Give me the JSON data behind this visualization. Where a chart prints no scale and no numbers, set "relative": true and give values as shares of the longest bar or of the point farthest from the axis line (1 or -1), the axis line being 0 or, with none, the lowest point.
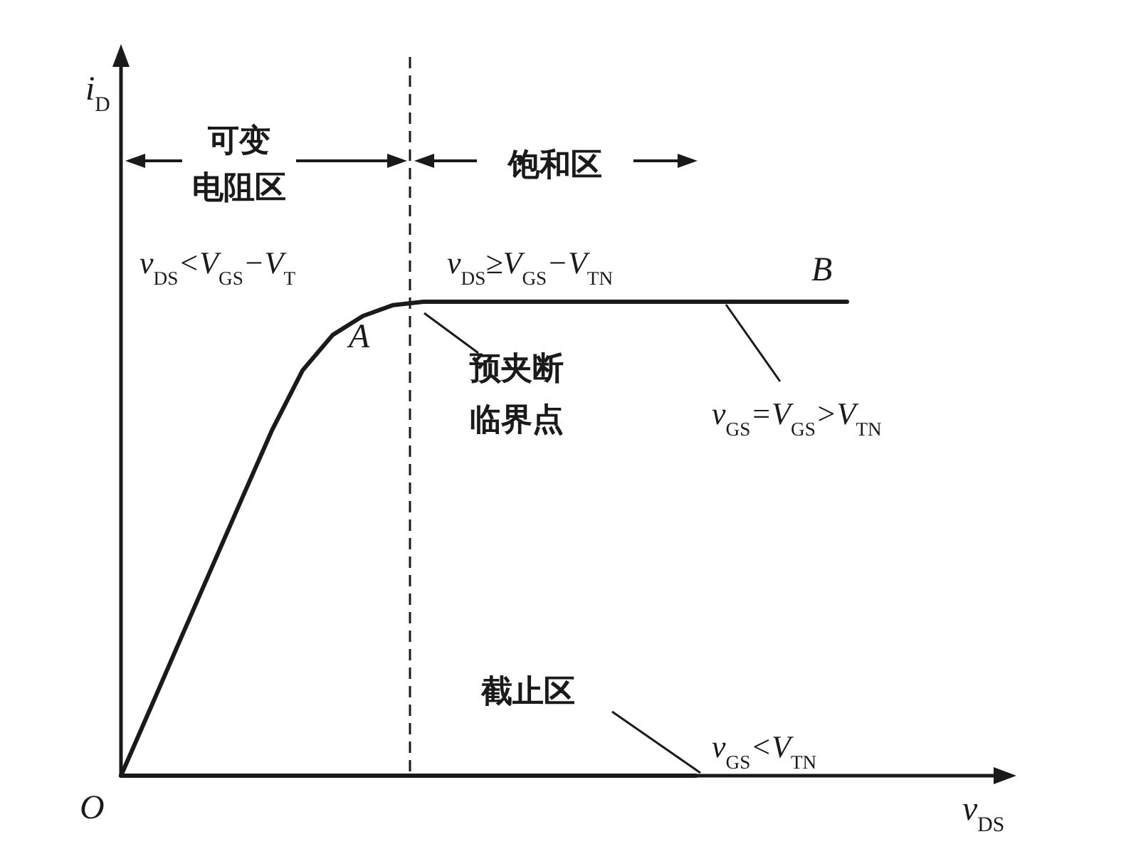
{
  "chart_data": {
    "type": "line",
    "relative": true,
    "xlabel": "v$_{DS}$",
    "categories": [
      null,
      null,
      null,
      null,
      null,
      null,
      null,
      null,
      null,
      null,
      null,
      null,
      null,
      null,
      null,
      null,
      null,
      null,
      null,
      null,
      null,
      null,
      null,
      null,
      null
    ],
    "series": [
      {
        "type": "line",
        "color": "#1a1a1a",
        "values": [
          0,
          0.146,
          0.293,
          0.439,
          0.585,
          0.73,
          0.855,
          0.93,
          0.97,
          0.993,
          1,
          1,
          1,
          1,
          1,
          1,
          1,
          1,
          1,
          1,
          1,
          1,
          1,
          1,
          1
        ]
      },
      {
        "type": "line",
        "color": "#1a1a1a",
        "values": [
          0,
          0,
          0,
          0,
          0,
          0,
          0,
          0,
          0,
          0,
          0,
          0,
          0,
          0,
          0,
          0,
          0,
          0,
          0,
          0,
          null,
          null,
          null,
          null,
          null
        ]
      }
    ],
    "annotations": [
      "可变",
      "电阻区",
      "饱和区",
      "v$_{DS}$<V$_{GS}$−V$_{T}$",
      "v$_{DS}$≥V$_{GS}$−V$_{TN}$",
      "A",
      "B",
      "预夹断",
      "临界点",
      "v$_{GS}$=V$_{GS}$>V$_{TN}$",
      "截止区",
      "v$_{GS}$<V$_{TN}$",
      "O",
      "i$_{D}$"
    ]
  }
}
